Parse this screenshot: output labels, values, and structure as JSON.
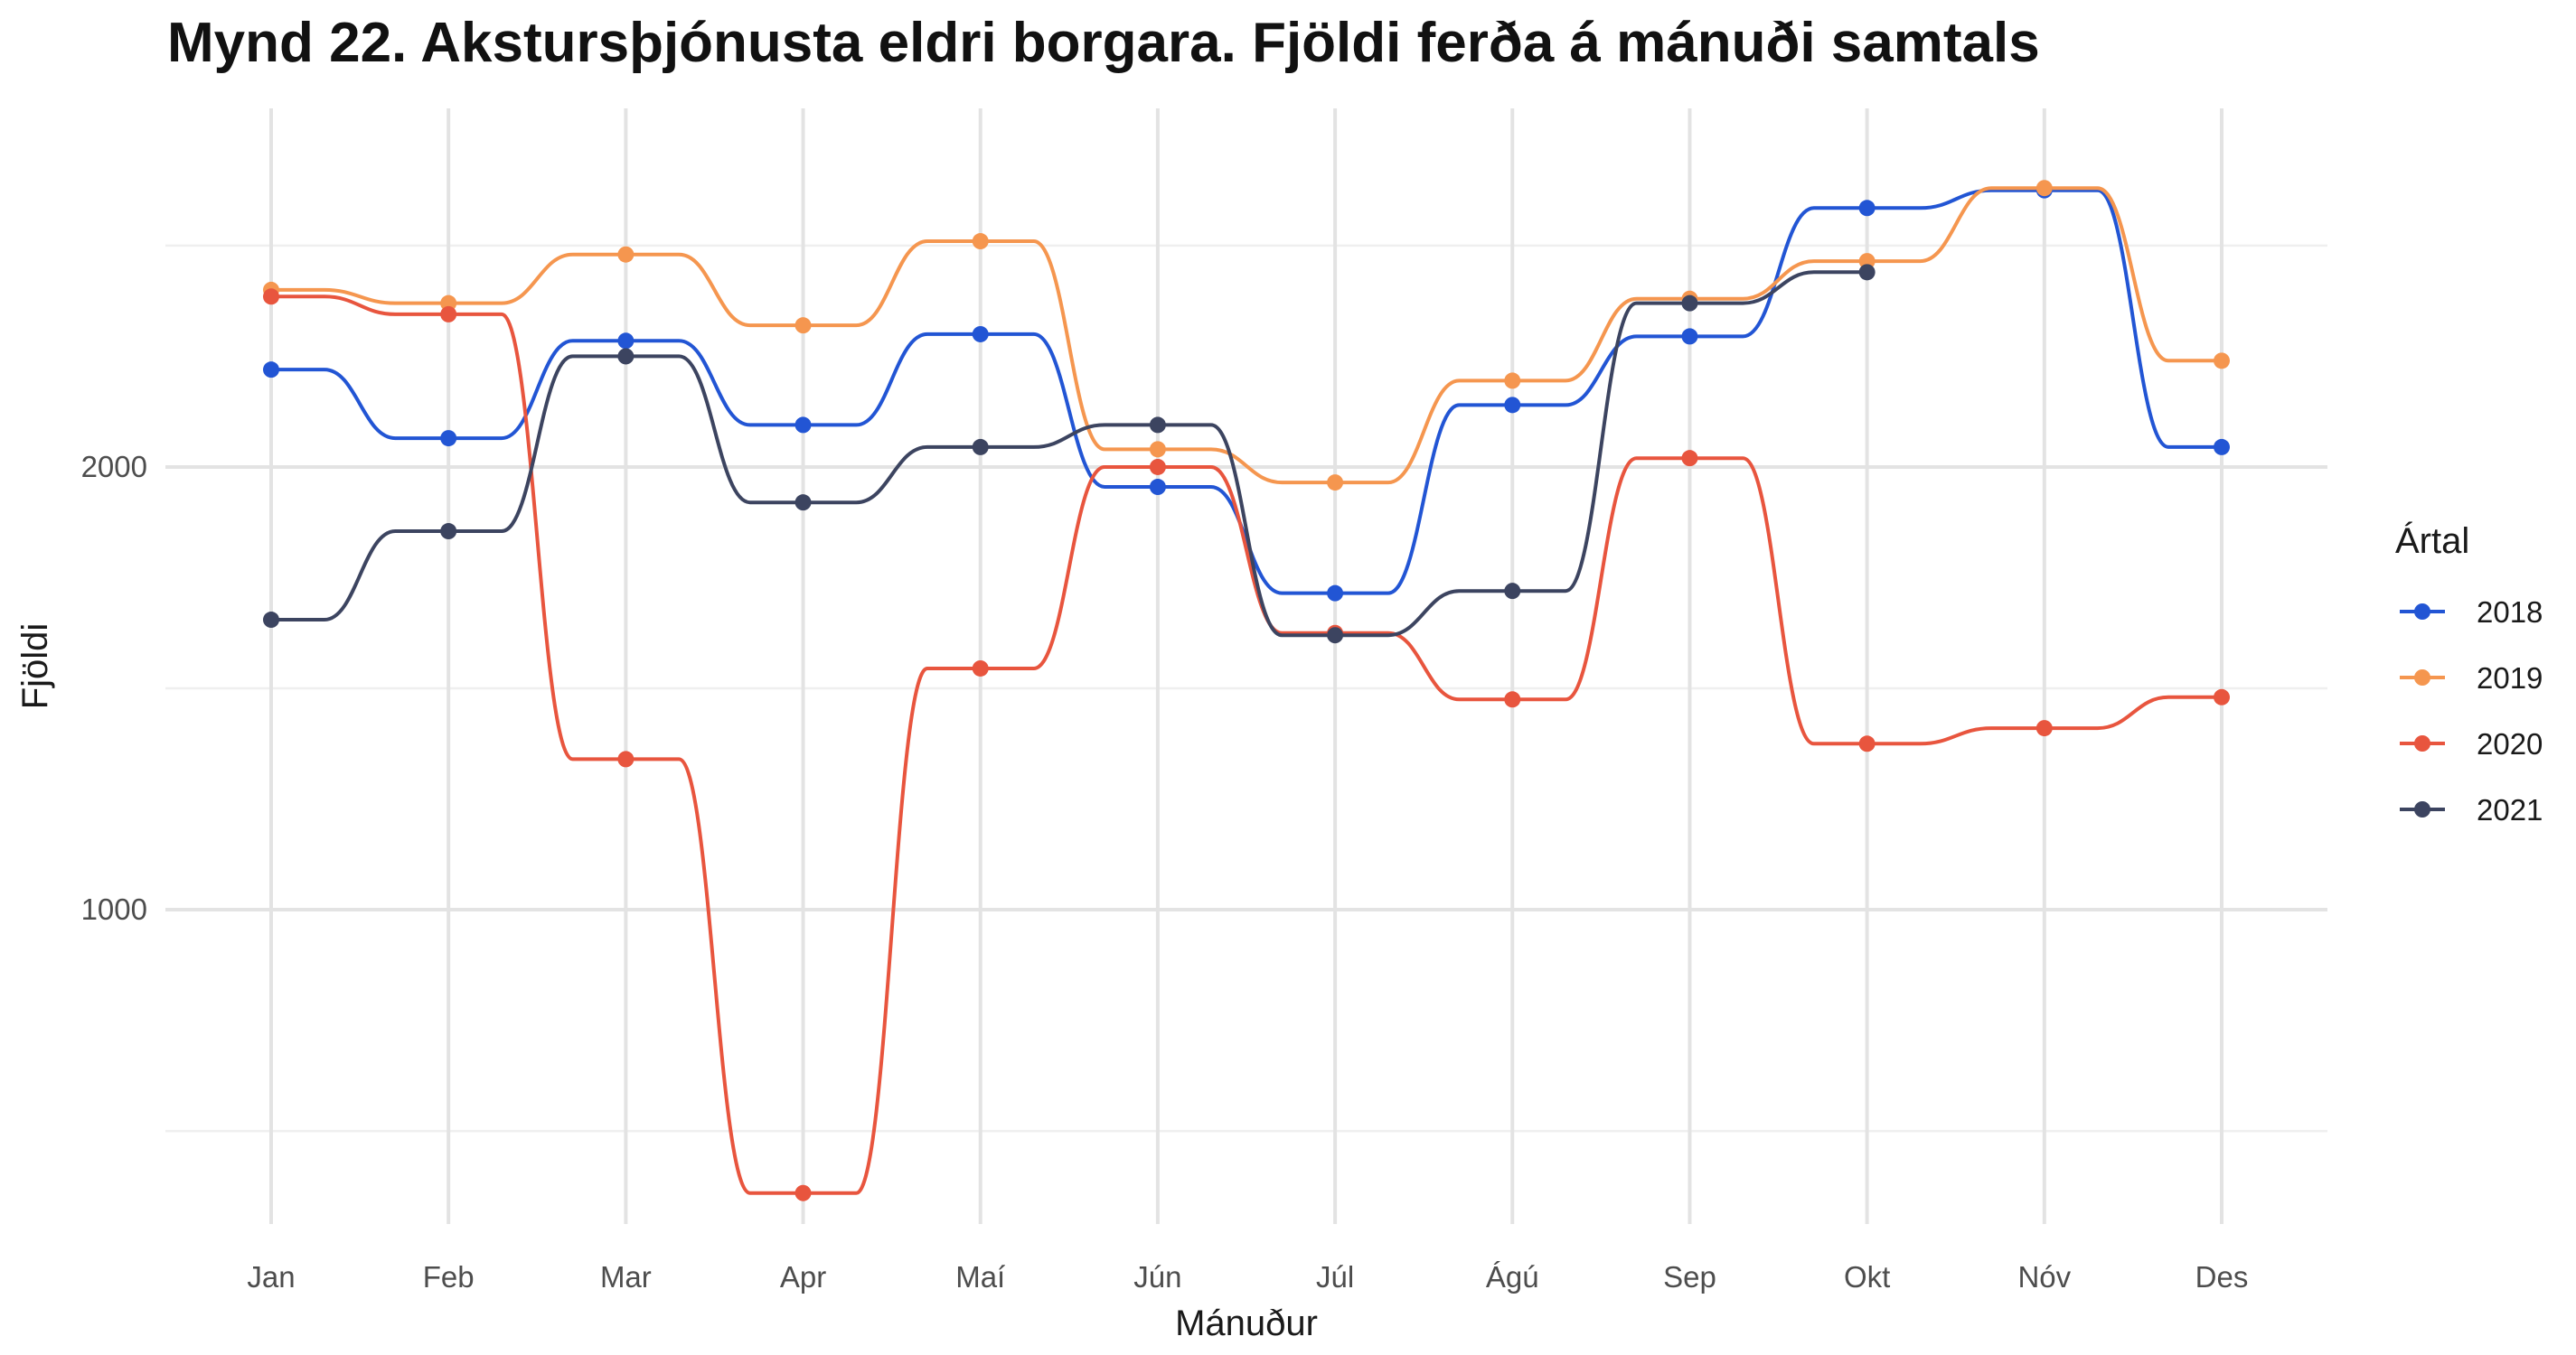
{
  "chart_data": {
    "type": "line",
    "title": "Mynd 22. Akstursþjónusta eldri borgara. Fjöldi ferða á mánuði samtals",
    "xlabel": "Mánuður",
    "ylabel": "Fjöldi",
    "categories": [
      "Jan",
      "Feb",
      "Mar",
      "Apr",
      "Maí",
      "Jún",
      "Júl",
      "Ágú",
      "Sep",
      "Okt",
      "Nóv",
      "Des"
    ],
    "ylim": [
      290,
      2810
    ],
    "yticks": [
      1000,
      2000
    ],
    "grid": true,
    "smooth": true,
    "legend": {
      "title": "Ártal",
      "placement": "right"
    },
    "series": [
      {
        "name": "2018",
        "color": "#2255d4",
        "values": [
          2220,
          2065,
          2285,
          2095,
          2300,
          1955,
          1715,
          2140,
          2295,
          2585,
          2625,
          2045
        ]
      },
      {
        "name": "2019",
        "color": "#f5964f",
        "values": [
          2400,
          2370,
          2480,
          2320,
          2510,
          2040,
          1965,
          2195,
          2380,
          2465,
          2630,
          2240
        ]
      },
      {
        "name": "2020",
        "color": "#e8553e",
        "values": [
          2385,
          2345,
          1340,
          360,
          1545,
          2000,
          1625,
          1475,
          2020,
          1375,
          1410,
          1480
        ]
      },
      {
        "name": "2021",
        "color": "#3c4460",
        "values": [
          1655,
          1855,
          2250,
          1920,
          2045,
          2095,
          1620,
          1720,
          2370,
          2440,
          null,
          null
        ]
      }
    ]
  }
}
